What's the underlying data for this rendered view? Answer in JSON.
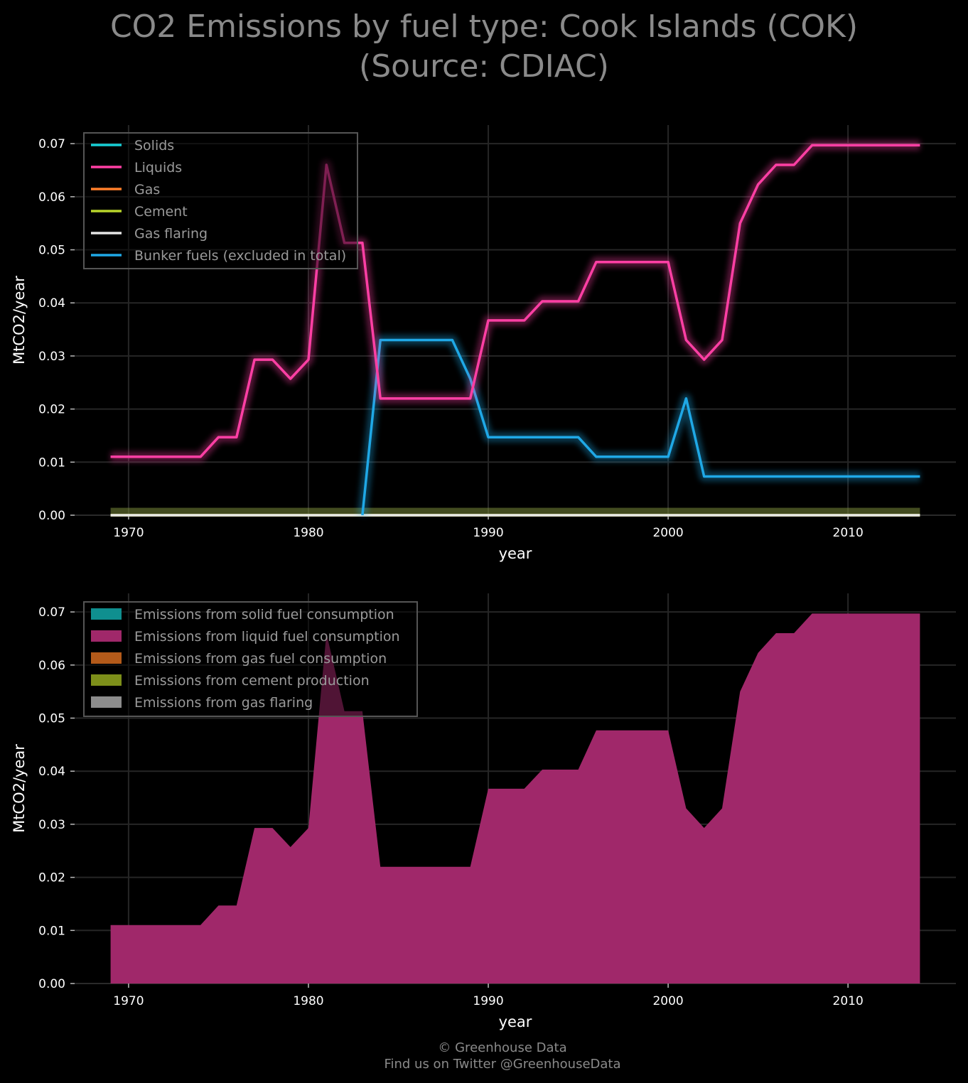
{
  "title": "CO2 Emissions by fuel type: Cook Islands (COK)\n(Source: CDIAC)",
  "footer": {
    "line1": "© Greenhouse Data",
    "line2": "Find us on Twitter @GreenhouseData"
  },
  "chart_data": [
    {
      "type": "line",
      "xlabel": "year",
      "ylabel": "MtCO2/year",
      "xlim": [
        1967,
        2016
      ],
      "ylim": [
        0,
        0.0735
      ],
      "xticks": [
        1970,
        1980,
        1990,
        2000,
        2010
      ],
      "yticks": [
        0,
        0.01,
        0.02,
        0.03,
        0.04,
        0.05,
        0.06,
        0.07
      ],
      "ytick_labels": [
        "0.00",
        "0.01",
        "0.02",
        "0.03",
        "0.04",
        "0.05",
        "0.06",
        "0.07"
      ],
      "grid": true,
      "legend_position": "top-left",
      "x": [
        1969,
        1970,
        1971,
        1972,
        1973,
        1974,
        1975,
        1976,
        1977,
        1978,
        1979,
        1980,
        1981,
        1982,
        1983,
        1984,
        1985,
        1986,
        1987,
        1988,
        1989,
        1990,
        1991,
        1992,
        1993,
        1994,
        1995,
        1996,
        1997,
        1998,
        1999,
        2000,
        2001,
        2002,
        2003,
        2004,
        2005,
        2006,
        2007,
        2008,
        2009,
        2010,
        2011,
        2012,
        2013,
        2014
      ],
      "series": [
        {
          "name": "Solids",
          "color": "#17cfd6",
          "values": [
            0,
            0,
            0,
            0,
            0,
            0,
            0,
            0,
            0,
            0,
            0,
            0,
            0,
            0,
            0,
            0,
            0,
            0,
            0,
            0,
            0,
            0,
            0,
            0,
            0,
            0,
            0,
            0,
            0,
            0,
            0,
            0,
            0,
            0,
            0,
            0,
            0,
            0,
            0,
            0,
            0,
            0,
            0,
            0,
            0,
            0
          ]
        },
        {
          "name": "Liquids",
          "color": "#ff3fa4",
          "values": [
            0.011,
            0.011,
            0.011,
            0.011,
            0.011,
            0.011,
            0.0147,
            0.0147,
            0.0293,
            0.0293,
            0.0257,
            0.0293,
            0.066,
            0.0513,
            0.0513,
            0.022,
            0.022,
            0.022,
            0.022,
            0.022,
            0.022,
            0.0367,
            0.0367,
            0.0367,
            0.0403,
            0.0403,
            0.0403,
            0.0477,
            0.0477,
            0.0477,
            0.0477,
            0.0477,
            0.033,
            0.0293,
            0.033,
            0.055,
            0.0623,
            0.066,
            0.066,
            0.0697,
            0.0697,
            0.0697,
            0.0697,
            0.0697,
            0.0697,
            0.0697
          ]
        },
        {
          "name": "Gas",
          "color": "#ff7f2a",
          "values": [
            0,
            0,
            0,
            0,
            0,
            0,
            0,
            0,
            0,
            0,
            0,
            0,
            0,
            0,
            0,
            0,
            0,
            0,
            0,
            0,
            0,
            0,
            0,
            0,
            0,
            0,
            0,
            0,
            0,
            0,
            0,
            0,
            0,
            0,
            0,
            0,
            0,
            0,
            0,
            0,
            0,
            0,
            0,
            0,
            0,
            0
          ]
        },
        {
          "name": "Cement",
          "color": "#b8d42a",
          "values": [
            0,
            0,
            0,
            0,
            0,
            0,
            0,
            0,
            0,
            0,
            0,
            0,
            0,
            0,
            0,
            0,
            0,
            0,
            0,
            0,
            0,
            0,
            0,
            0,
            0,
            0,
            0,
            0,
            0,
            0,
            0,
            0,
            0,
            0,
            0,
            0,
            0,
            0,
            0,
            0,
            0,
            0,
            0,
            0,
            0,
            0
          ]
        },
        {
          "name": "Gas flaring",
          "color": "#e6e6e6",
          "values": [
            0,
            0,
            0,
            0,
            0,
            0,
            0,
            0,
            0,
            0,
            0,
            0,
            0,
            0,
            0,
            0,
            0,
            0,
            0,
            0,
            0,
            0,
            0,
            0,
            0,
            0,
            0,
            0,
            0,
            0,
            0,
            0,
            0,
            0,
            0,
            0,
            0,
            0,
            0,
            0,
            0,
            0,
            0,
            0,
            0,
            0
          ]
        },
        {
          "name": "Bunker fuels (excluded in total)",
          "color": "#1fa8e6",
          "values": [
            null,
            null,
            null,
            null,
            null,
            null,
            null,
            null,
            null,
            null,
            null,
            null,
            null,
            null,
            0,
            0.033,
            0.033,
            0.033,
            0.033,
            0.033,
            0.0257,
            0.0147,
            0.0147,
            0.0147,
            0.0147,
            0.0147,
            0.0147,
            0.011,
            0.011,
            0.011,
            0.011,
            0.011,
            0.022,
            0.0073,
            0.0073,
            0.0073,
            0.0073,
            0.0073,
            0.0073,
            0.0073,
            0.0073,
            0.0073,
            0.0073,
            0.0073,
            0.0073,
            0.0073
          ]
        }
      ]
    },
    {
      "type": "area",
      "stacked": true,
      "xlabel": "year",
      "ylabel": "MtCO2/year",
      "xlim": [
        1967,
        2016
      ],
      "ylim": [
        0,
        0.0735
      ],
      "xticks": [
        1970,
        1980,
        1990,
        2000,
        2010
      ],
      "yticks": [
        0,
        0.01,
        0.02,
        0.03,
        0.04,
        0.05,
        0.06,
        0.07
      ],
      "ytick_labels": [
        "0.00",
        "0.01",
        "0.02",
        "0.03",
        "0.04",
        "0.05",
        "0.06",
        "0.07"
      ],
      "grid": true,
      "legend_position": "top-left",
      "x": [
        1969,
        1970,
        1971,
        1972,
        1973,
        1974,
        1975,
        1976,
        1977,
        1978,
        1979,
        1980,
        1981,
        1982,
        1983,
        1984,
        1985,
        1986,
        1987,
        1988,
        1989,
        1990,
        1991,
        1992,
        1993,
        1994,
        1995,
        1996,
        1997,
        1998,
        1999,
        2000,
        2001,
        2002,
        2003,
        2004,
        2005,
        2006,
        2007,
        2008,
        2009,
        2010,
        2011,
        2012,
        2013,
        2014
      ],
      "series": [
        {
          "name": "Emissions from solid fuel consumption",
          "color": "#0f8f8f",
          "values": [
            0,
            0,
            0,
            0,
            0,
            0,
            0,
            0,
            0,
            0,
            0,
            0,
            0,
            0,
            0,
            0,
            0,
            0,
            0,
            0,
            0,
            0,
            0,
            0,
            0,
            0,
            0,
            0,
            0,
            0,
            0,
            0,
            0,
            0,
            0,
            0,
            0,
            0,
            0,
            0,
            0,
            0,
            0,
            0,
            0,
            0
          ]
        },
        {
          "name": "Emissions from liquid fuel consumption",
          "color": "#a0286a",
          "values": [
            0.011,
            0.011,
            0.011,
            0.011,
            0.011,
            0.011,
            0.0147,
            0.0147,
            0.0293,
            0.0293,
            0.0257,
            0.0293,
            0.066,
            0.0513,
            0.0513,
            0.022,
            0.022,
            0.022,
            0.022,
            0.022,
            0.022,
            0.0367,
            0.0367,
            0.0367,
            0.0403,
            0.0403,
            0.0403,
            0.0477,
            0.0477,
            0.0477,
            0.0477,
            0.0477,
            0.033,
            0.0293,
            0.033,
            0.055,
            0.0623,
            0.066,
            0.066,
            0.0697,
            0.0697,
            0.0697,
            0.0697,
            0.0697,
            0.0697,
            0.0697
          ]
        },
        {
          "name": "Emissions from gas fuel consumption",
          "color": "#b35a1a",
          "values": [
            0,
            0,
            0,
            0,
            0,
            0,
            0,
            0,
            0,
            0,
            0,
            0,
            0,
            0,
            0,
            0,
            0,
            0,
            0,
            0,
            0,
            0,
            0,
            0,
            0,
            0,
            0,
            0,
            0,
            0,
            0,
            0,
            0,
            0,
            0,
            0,
            0,
            0,
            0,
            0,
            0,
            0,
            0,
            0,
            0,
            0
          ]
        },
        {
          "name": "Emissions from cement production",
          "color": "#7d8f1a",
          "values": [
            0,
            0,
            0,
            0,
            0,
            0,
            0,
            0,
            0,
            0,
            0,
            0,
            0,
            0,
            0,
            0,
            0,
            0,
            0,
            0,
            0,
            0,
            0,
            0,
            0,
            0,
            0,
            0,
            0,
            0,
            0,
            0,
            0,
            0,
            0,
            0,
            0,
            0,
            0,
            0,
            0,
            0,
            0,
            0,
            0,
            0
          ]
        },
        {
          "name": "Emissions from gas flaring",
          "color": "#8c8c8c",
          "values": [
            0,
            0,
            0,
            0,
            0,
            0,
            0,
            0,
            0,
            0,
            0,
            0,
            0,
            0,
            0,
            0,
            0,
            0,
            0,
            0,
            0,
            0,
            0,
            0,
            0,
            0,
            0,
            0,
            0,
            0,
            0,
            0,
            0,
            0,
            0,
            0,
            0,
            0,
            0,
            0,
            0,
            0,
            0,
            0,
            0,
            0
          ]
        }
      ]
    }
  ]
}
